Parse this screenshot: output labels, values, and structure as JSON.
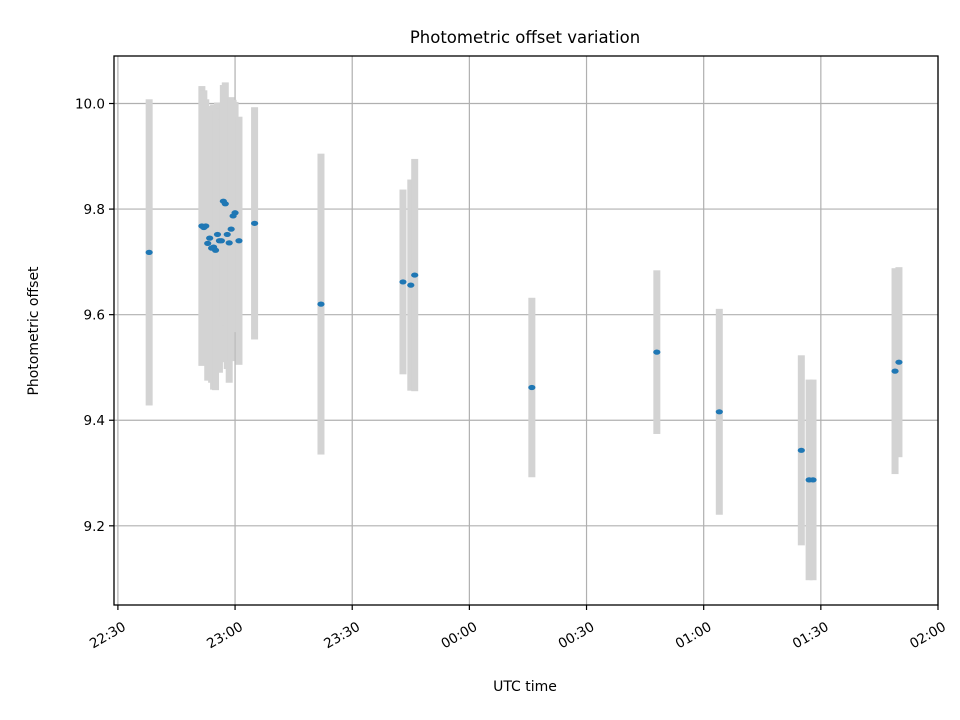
{
  "chart_data": {
    "type": "scatter",
    "title": "Photometric offset variation",
    "xlabel": "UTC time",
    "ylabel": "Photometric offset",
    "x_unit": "UTC time (HH:MM)",
    "x_range": [
      "22:29",
      "02:00"
    ],
    "x_ticks": [
      "22:30",
      "23:00",
      "23:30",
      "00:00",
      "00:30",
      "01:00",
      "01:30",
      "02:00"
    ],
    "ylim": [
      9.05,
      10.09
    ],
    "y_ticks": [
      "9.2",
      "9.4",
      "9.6",
      "9.8",
      "10.0"
    ],
    "grid": true,
    "colors": {
      "points": "#1f77b4",
      "errorbars": "#d3d3d3",
      "grid": "#b0b0b0"
    },
    "points": [
      {
        "t": "22:38:00",
        "y": 9.718,
        "err": 0.29
      },
      {
        "t": "22:51:30",
        "y": 9.768,
        "err": 0.265
      },
      {
        "t": "22:52:00",
        "y": 9.765,
        "err": 0.26
      },
      {
        "t": "22:52:30",
        "y": 9.768,
        "err": 0.24
      },
      {
        "t": "22:53:00",
        "y": 9.735,
        "err": 0.26
      },
      {
        "t": "22:53:30",
        "y": 9.745,
        "err": 0.25
      },
      {
        "t": "22:54:00",
        "y": 9.726,
        "err": 0.255
      },
      {
        "t": "22:54:30",
        "y": 9.728,
        "err": 0.27
      },
      {
        "t": "22:55:00",
        "y": 9.722,
        "err": 0.265
      },
      {
        "t": "22:55:30",
        "y": 9.752,
        "err": 0.25
      },
      {
        "t": "22:56:00",
        "y": 9.74,
        "err": 0.25
      },
      {
        "t": "22:56:30",
        "y": 9.74,
        "err": 0.23
      },
      {
        "t": "22:57:00",
        "y": 9.815,
        "err": 0.22
      },
      {
        "t": "22:57:30",
        "y": 9.81,
        "err": 0.23
      },
      {
        "t": "22:58:00",
        "y": 9.752,
        "err": 0.255
      },
      {
        "t": "22:58:30",
        "y": 9.736,
        "err": 0.265
      },
      {
        "t": "22:59:00",
        "y": 9.762,
        "err": 0.25
      },
      {
        "t": "22:59:30",
        "y": 9.787,
        "err": 0.22
      },
      {
        "t": "23:00:00",
        "y": 9.793,
        "err": 0.21
      },
      {
        "t": "23:01:00",
        "y": 9.74,
        "err": 0.235
      },
      {
        "t": "23:05:00",
        "y": 9.773,
        "err": 0.22
      },
      {
        "t": "23:22:00",
        "y": 9.62,
        "err": 0.285
      },
      {
        "t": "23:43:00",
        "y": 9.662,
        "err": 0.175
      },
      {
        "t": "23:45:00",
        "y": 9.656,
        "err": 0.2
      },
      {
        "t": "23:46:00",
        "y": 9.675,
        "err": 0.22
      },
      {
        "t": "00:16:00",
        "y": 9.462,
        "err": 0.17
      },
      {
        "t": "00:48:00",
        "y": 9.529,
        "err": 0.155
      },
      {
        "t": "01:04:00",
        "y": 9.416,
        "err": 0.195
      },
      {
        "t": "01:25:00",
        "y": 9.343,
        "err": 0.18
      },
      {
        "t": "01:27:00",
        "y": 9.287,
        "err": 0.19
      },
      {
        "t": "01:28:00",
        "y": 9.287,
        "err": 0.19
      },
      {
        "t": "01:49:00",
        "y": 9.493,
        "err": 0.195
      },
      {
        "t": "01:50:00",
        "y": 9.51,
        "err": 0.18
      }
    ]
  }
}
